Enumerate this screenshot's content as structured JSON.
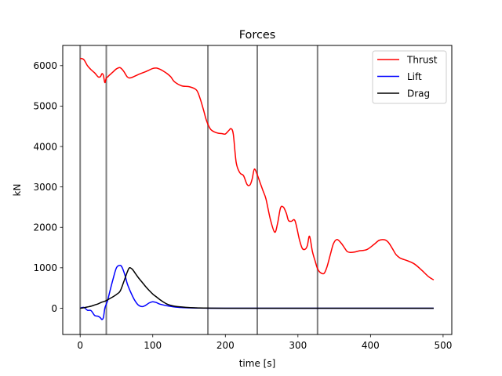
{
  "chart_data": {
    "type": "line",
    "title": "Forces",
    "xlabel": "time [s]",
    "ylabel": "kN",
    "xlim": [
      -24,
      512
    ],
    "ylim": [
      -650,
      6500
    ],
    "xticks": [
      0,
      100,
      200,
      300,
      400,
      500
    ],
    "yticks": [
      0,
      1000,
      2000,
      3000,
      4000,
      5000,
      6000
    ],
    "grid": false,
    "legend": "top-right",
    "event_lines": [
      0,
      36,
      176,
      244,
      327
    ],
    "series": [
      {
        "name": "Thrust",
        "color": "#ff0000",
        "x": [
          0,
          5,
          10,
          15,
          20,
          25,
          28,
          30,
          32,
          34,
          36,
          38,
          40,
          45,
          50,
          55,
          60,
          65,
          70,
          80,
          90,
          100,
          105,
          110,
          115,
          120,
          125,
          130,
          140,
          150,
          160,
          165,
          170,
          173,
          176,
          180,
          185,
          190,
          195,
          200,
          205,
          208,
          211,
          215,
          220,
          225,
          230,
          234,
          237,
          240,
          244,
          248,
          252,
          256,
          262,
          268,
          272,
          276,
          280,
          284,
          287,
          291,
          296,
          302,
          306,
          310,
          313,
          316,
          320,
          324,
          327,
          331,
          336,
          340,
          345,
          349,
          354,
          360,
          365,
          368,
          372,
          378,
          385,
          395,
          405,
          412,
          420,
          425,
          430,
          435,
          440,
          445,
          450,
          460,
          470,
          480,
          487
        ],
        "values": [
          6180,
          6150,
          6000,
          5900,
          5820,
          5720,
          5730,
          5800,
          5760,
          5580,
          5700,
          5720,
          5760,
          5840,
          5920,
          5950,
          5860,
          5720,
          5700,
          5780,
          5850,
          5930,
          5940,
          5910,
          5860,
          5800,
          5720,
          5600,
          5500,
          5480,
          5400,
          5200,
          4900,
          4700,
          4550,
          4420,
          4360,
          4330,
          4320,
          4310,
          4400,
          4440,
          4300,
          3600,
          3350,
          3280,
          3060,
          3050,
          3200,
          3440,
          3300,
          3100,
          2900,
          2700,
          2200,
          1880,
          2100,
          2480,
          2500,
          2350,
          2170,
          2150,
          2160,
          1700,
          1480,
          1460,
          1550,
          1780,
          1400,
          1150,
          980,
          880,
          860,
          1020,
          1350,
          1600,
          1700,
          1600,
          1470,
          1400,
          1380,
          1390,
          1420,
          1450,
          1580,
          1680,
          1690,
          1620,
          1480,
          1330,
          1250,
          1210,
          1180,
          1100,
          950,
          780,
          700
        ]
      },
      {
        "name": "Lift",
        "color": "#0000ff",
        "x": [
          0,
          5,
          10,
          15,
          20,
          25,
          28,
          30,
          32,
          34,
          36,
          38,
          40,
          45,
          50,
          55,
          58,
          62,
          65,
          70,
          75,
          80,
          85,
          90,
          95,
          100,
          105,
          110,
          120,
          130,
          140,
          150,
          160,
          180,
          200,
          240,
          300,
          400,
          487
        ],
        "values": [
          0,
          20,
          -50,
          -60,
          -180,
          -200,
          -240,
          -280,
          -230,
          0,
          100,
          200,
          350,
          700,
          1000,
          1060,
          1000,
          800,
          600,
          380,
          200,
          80,
          40,
          70,
          130,
          160,
          140,
          100,
          60,
          30,
          15,
          8,
          4,
          0,
          0,
          0,
          0,
          0,
          0
        ]
      },
      {
        "name": "Drag",
        "color": "#000000",
        "x": [
          0,
          5,
          10,
          15,
          20,
          25,
          30,
          35,
          40,
          45,
          50,
          55,
          60,
          65,
          68,
          72,
          76,
          80,
          85,
          90,
          95,
          100,
          105,
          110,
          115,
          120,
          125,
          130,
          140,
          150,
          160,
          170,
          180,
          200,
          240,
          300,
          400,
          487
        ],
        "values": [
          0,
          10,
          30,
          50,
          80,
          110,
          150,
          180,
          230,
          280,
          340,
          420,
          650,
          900,
          1000,
          960,
          860,
          760,
          650,
          540,
          440,
          350,
          280,
          210,
          150,
          100,
          70,
          50,
          30,
          15,
          8,
          4,
          2,
          0,
          0,
          0,
          0,
          0
        ]
      }
    ]
  }
}
